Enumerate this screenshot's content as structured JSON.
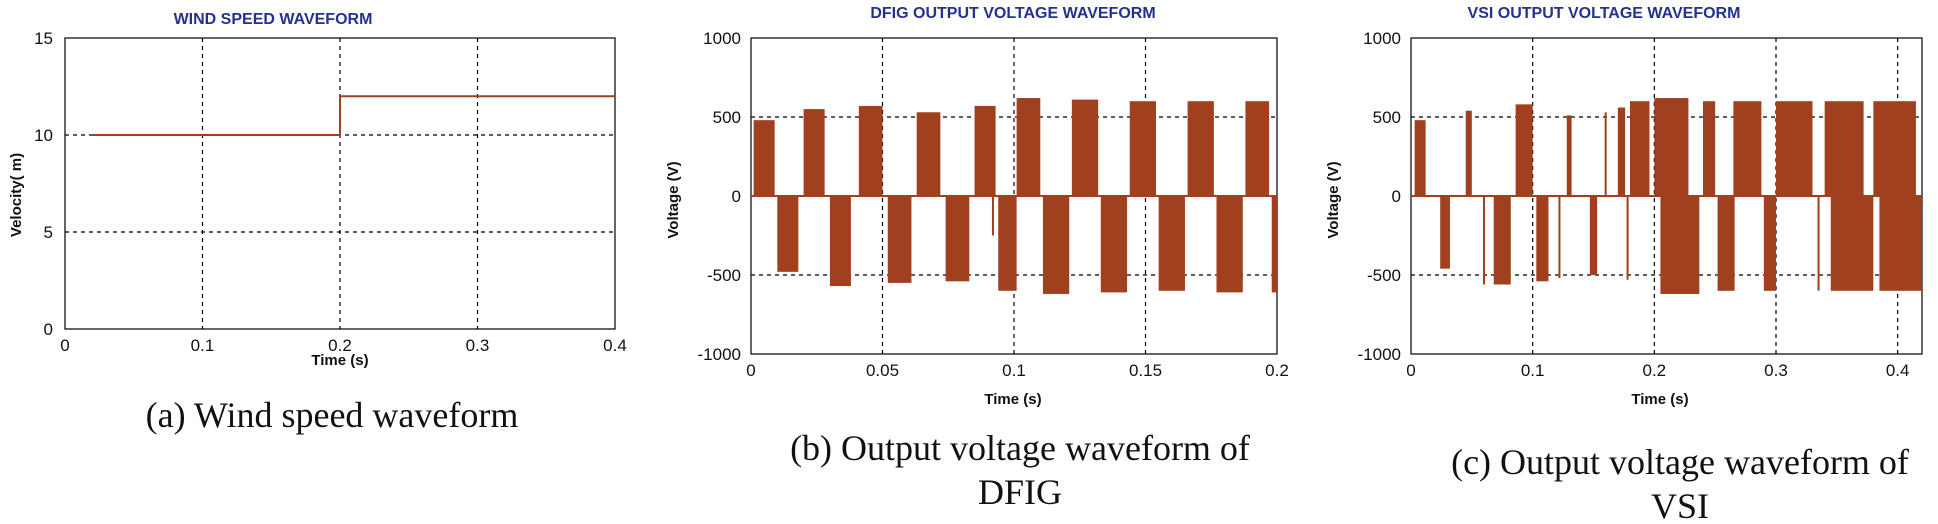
{
  "chart_data": [
    {
      "type": "line",
      "title": "WIND SPEED WAVEFORM",
      "xlabel": "Time (s)",
      "ylabel": "Velocity( m)",
      "xlim": [
        0,
        0.4
      ],
      "ylim": [
        0,
        15
      ],
      "xticks": [
        "0",
        "0.1",
        "0.2",
        "0.3",
        "0.4"
      ],
      "yticks": [
        "0",
        "5",
        "10",
        "15"
      ],
      "grid": true,
      "color": "#a0401e",
      "series": [
        {
          "name": "Wind speed",
          "x": [
            0.02,
            0.2,
            0.2,
            0.4
          ],
          "y": [
            10,
            10,
            12,
            12
          ]
        }
      ],
      "caption": "(a) Wind speed waveform"
    },
    {
      "type": "line",
      "title": "DFIG OUTPUT VOLTAGE WAVEFORM",
      "xlabel": "Time (s)",
      "ylabel": "Voltage (V)",
      "xlim": [
        0,
        0.2
      ],
      "ylim": [
        -1000,
        1000
      ],
      "xticks": [
        "0",
        "0.05",
        "0.1",
        "0.15",
        "0.2"
      ],
      "yticks": [
        "-1000",
        "-500",
        "0",
        "500",
        "1000"
      ],
      "grid": true,
      "color": "#a0401e",
      "series": [
        {
          "name": "DFIG output voltage",
          "pulses": [
            [
              0.001,
              0.009,
              480
            ],
            [
              0.01,
              0.018,
              -480
            ],
            [
              0.02,
              0.028,
              550
            ],
            [
              0.03,
              0.038,
              -570
            ],
            [
              0.041,
              0.05,
              570
            ],
            [
              0.052,
              0.061,
              -550
            ],
            [
              0.063,
              0.072,
              530
            ],
            [
              0.074,
              0.083,
              -540
            ],
            [
              0.085,
              0.093,
              570
            ],
            [
              0.094,
              0.101,
              -600
            ],
            [
              0.101,
              0.11,
              620
            ],
            [
              0.111,
              0.121,
              -620
            ],
            [
              0.122,
              0.132,
              610
            ],
            [
              0.133,
              0.143,
              -610
            ],
            [
              0.144,
              0.154,
              600
            ],
            [
              0.155,
              0.165,
              -600
            ],
            [
              0.166,
              0.176,
              600
            ],
            [
              0.177,
              0.187,
              -610
            ],
            [
              0.188,
              0.197,
              600
            ],
            [
              0.198,
              0.2,
              -610
            ]
          ],
          "spikes": [
            [
              0.092,
              -250
            ]
          ]
        }
      ],
      "caption_lines": [
        "(b) Output voltage waveform of",
        "DFIG"
      ]
    },
    {
      "type": "line",
      "title": "VSI OUTPUT VOLTAGE WAVEFORM",
      "xlabel": "Time (s)",
      "ylabel": "Voltage (V)",
      "xlim": [
        0,
        0.42
      ],
      "ylim": [
        -1000,
        1000
      ],
      "xticks": [
        "0",
        "0.1",
        "0.2",
        "0.3",
        "0.4"
      ],
      "yticks": [
        "-1000",
        "-500",
        "0",
        "500",
        "1000"
      ],
      "grid": true,
      "color": "#a0401e",
      "series": [
        {
          "name": "VSI output voltage",
          "pulses": [
            [
              0.003,
              0.012,
              480
            ],
            [
              0.024,
              0.032,
              -460
            ],
            [
              0.045,
              0.05,
              540
            ],
            [
              0.068,
              0.082,
              -560
            ],
            [
              0.086,
              0.1,
              580
            ],
            [
              0.103,
              0.113,
              -540
            ],
            [
              0.128,
              0.132,
              510
            ],
            [
              0.147,
              0.153,
              -500
            ],
            [
              0.17,
              0.176,
              560
            ],
            [
              0.18,
              0.196,
              600
            ],
            [
              0.2,
              0.228,
              620
            ],
            [
              0.24,
              0.25,
              600
            ],
            [
              0.265,
              0.288,
              600
            ],
            [
              0.3,
              0.33,
              600
            ],
            [
              0.34,
              0.372,
              600
            ],
            [
              0.38,
              0.415,
              600
            ],
            [
              0.205,
              0.237,
              -620
            ],
            [
              0.252,
              0.266,
              -600
            ],
            [
              0.29,
              0.3,
              -600
            ],
            [
              0.345,
              0.38,
              -600
            ],
            [
              0.385,
              0.42,
              -600
            ]
          ],
          "spikes": [
            [
              0.06,
              -560
            ],
            [
              0.092,
              560
            ],
            [
              0.122,
              -520
            ],
            [
              0.16,
              530
            ],
            [
              0.178,
              -530
            ],
            [
              0.225,
              600
            ],
            [
              0.255,
              -600
            ],
            [
              0.335,
              -600
            ]
          ]
        }
      ],
      "caption_lines": [
        "(c) Output voltage waveform of",
        "VSI"
      ]
    }
  ]
}
